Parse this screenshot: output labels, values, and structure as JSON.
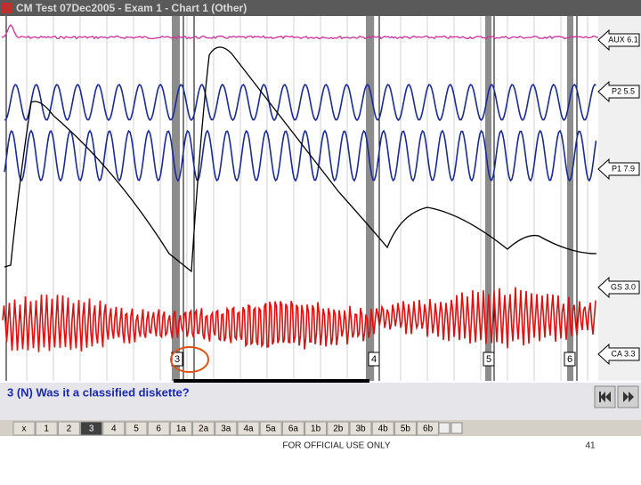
{
  "window_title": "CM Test 07Dec2005 - Exam 1 - Chart 1 (Other)",
  "channels": [
    {
      "label": "AUX 6.1"
    },
    {
      "label": "P2 5.5"
    },
    {
      "label": "P1 7.9"
    },
    {
      "label": "GS 3.0"
    },
    {
      "label": "CA 3.3"
    }
  ],
  "question_markers": [
    "3",
    "4",
    "5",
    "6"
  ],
  "question": "3 (N) Was it a classified diskette?",
  "tabs": [
    "x",
    "1",
    "2",
    "3",
    "4",
    "5",
    "6",
    "1a",
    "2a",
    "3a",
    "4a",
    "5a",
    "6a",
    "1b",
    "2b",
    "3b",
    "4b",
    "5b",
    "6b"
  ],
  "selected_tab": 3,
  "footer": {
    "classification": "FOR OFFICIAL USE ONLY",
    "page_number": "41"
  }
}
